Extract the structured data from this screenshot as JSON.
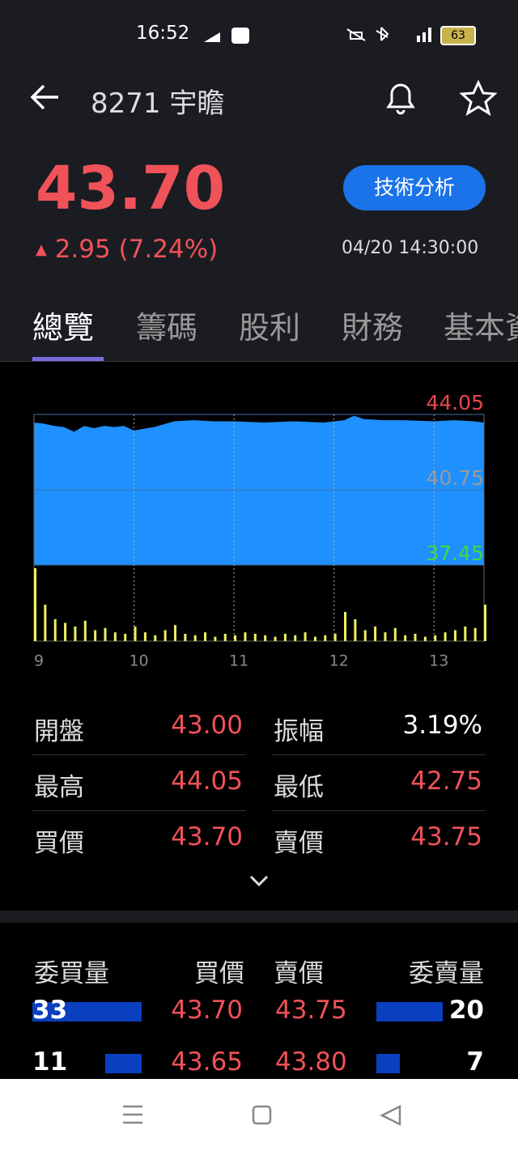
{
  "status_bar": {
    "time": "16:52",
    "battery": "63"
  },
  "header": {
    "title": "8271 宇瞻"
  },
  "quote": {
    "price": "43.70",
    "change": "2.95 (7.24%)",
    "button": "技術分析",
    "timestamp": "04/20 14:30:00"
  },
  "tabs": [
    "總覽",
    "籌碼",
    "股利",
    "財務",
    "基本資料"
  ],
  "chart_data": {
    "type": "area",
    "color": "#1e90ff",
    "line_color": "#000000",
    "x": [
      9.0,
      9.1,
      9.2,
      9.3,
      9.4,
      9.5,
      9.6,
      9.7,
      9.8,
      9.9,
      10.0,
      10.2,
      10.4,
      10.6,
      10.8,
      11.0,
      11.3,
      11.6,
      11.9,
      12.0,
      12.1,
      12.2,
      12.3,
      12.5,
      12.7,
      13.0,
      13.2,
      13.4,
      13.5
    ],
    "values": [
      43.75,
      43.7,
      43.6,
      43.55,
      43.35,
      43.6,
      43.5,
      43.6,
      43.55,
      43.6,
      43.4,
      43.55,
      43.8,
      43.85,
      43.8,
      43.8,
      43.75,
      43.8,
      43.75,
      43.8,
      43.85,
      44.05,
      43.9,
      43.85,
      43.85,
      43.8,
      43.85,
      43.8,
      43.75
    ],
    "xlim": [
      9,
      13.5
    ],
    "xticks": [
      9,
      10,
      11,
      12,
      13
    ],
    "ylim": [
      37.45,
      44.05
    ],
    "yticks": [
      37.45,
      40.75,
      44.05
    ],
    "ytick_colors": [
      "#3ddc3d",
      "#9a9a9a",
      "#e8474d"
    ],
    "grid": true,
    "volume": {
      "color": "#f0f060",
      "x": [
        9.0,
        9.1,
        9.2,
        9.3,
        9.4,
        9.5,
        9.6,
        9.7,
        9.8,
        9.9,
        10.0,
        10.1,
        10.2,
        10.3,
        10.4,
        10.5,
        10.6,
        10.7,
        10.8,
        10.9,
        11.0,
        11.1,
        11.2,
        11.3,
        11.4,
        11.5,
        11.6,
        11.7,
        11.8,
        11.9,
        12.0,
        12.1,
        12.2,
        12.3,
        12.4,
        12.5,
        12.6,
        12.7,
        12.8,
        12.9,
        13.0,
        13.1,
        13.2,
        13.3,
        13.4,
        13.5
      ],
      "values": [
        100,
        50,
        30,
        25,
        20,
        28,
        15,
        18,
        12,
        10,
        20,
        12,
        8,
        15,
        22,
        10,
        8,
        12,
        6,
        10,
        8,
        12,
        10,
        8,
        6,
        10,
        8,
        12,
        6,
        8,
        10,
        40,
        30,
        15,
        20,
        12,
        18,
        8,
        10,
        6,
        8,
        12,
        15,
        20,
        18,
        50
      ]
    }
  },
  "stats": [
    [
      "開盤",
      "43.00",
      "振幅",
      "3.19%"
    ],
    [
      "最高",
      "44.05",
      "最低",
      "42.75"
    ],
    [
      "買價",
      "43.70",
      "賣價",
      "43.75"
    ]
  ],
  "order_book": {
    "headers": [
      "委買量",
      "買價",
      "賣價",
      "委賣量"
    ],
    "rows": [
      [
        33,
        "43.70",
        "43.75",
        20
      ],
      [
        11,
        "43.65",
        "43.80",
        7
      ]
    ]
  }
}
